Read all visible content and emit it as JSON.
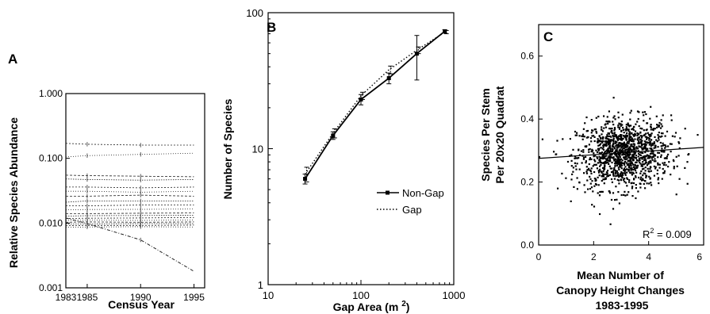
{
  "chart_data": [
    {
      "panel_label": "A",
      "type": "line",
      "xlabel": "Census Year",
      "ylabel": "Relative Species Abundance",
      "xlim": [
        1983,
        1996
      ],
      "ylim": [
        0.001,
        1.0
      ],
      "yscale": "log",
      "xticks": [
        "1983",
        "1985",
        "1990",
        "1995"
      ],
      "yticks": [
        "0.001",
        "0.010",
        "0.100",
        "1.000"
      ],
      "x": [
        1983,
        1985,
        1990,
        1995
      ],
      "series": [
        {
          "values": [
            0.17,
            0.165,
            0.16,
            0.16
          ]
        },
        {
          "values": [
            0.105,
            0.11,
            0.115,
            0.12
          ]
        },
        {
          "values": [
            0.055,
            0.054,
            0.053,
            0.052
          ]
        },
        {
          "values": [
            0.048,
            0.047,
            0.046,
            0.047
          ]
        },
        {
          "values": [
            0.036,
            0.036,
            0.035,
            0.036
          ]
        },
        {
          "values": [
            0.031,
            0.031,
            0.03,
            0.031
          ]
        },
        {
          "values": [
            0.026,
            0.026,
            0.027,
            0.026
          ]
        },
        {
          "values": [
            0.021,
            0.022,
            0.022,
            0.022
          ]
        },
        {
          "values": [
            0.0185,
            0.0185,
            0.019,
            0.019
          ]
        },
        {
          "values": [
            0.016,
            0.0162,
            0.0163,
            0.0165
          ]
        },
        {
          "values": [
            0.014,
            0.014,
            0.0142,
            0.0143
          ]
        },
        {
          "values": [
            0.0128,
            0.013,
            0.0131,
            0.0132
          ]
        },
        {
          "values": [
            0.0118,
            0.0119,
            0.012,
            0.0122
          ]
        },
        {
          "values": [
            0.011,
            0.0111,
            0.011,
            0.0112
          ]
        },
        {
          "values": [
            0.0103,
            0.0104,
            0.0103,
            0.0104
          ]
        },
        {
          "values": [
            0.0097,
            0.0097,
            0.0098,
            0.0098
          ]
        },
        {
          "values": [
            0.0091,
            0.0092,
            0.0092,
            0.0093
          ]
        },
        {
          "values": [
            0.0086,
            0.0087,
            0.0088,
            0.0087
          ]
        },
        {
          "values": [
            0.012,
            0.0098,
            0.0055,
            0.0018
          ]
        }
      ],
      "grid": false
    },
    {
      "panel_label": "B",
      "type": "line",
      "xlabel": "Gap Area (m²)",
      "ylabel": "Number of Species",
      "xscale": "log",
      "yscale": "log",
      "xlim": [
        10,
        1000
      ],
      "ylim": [
        1,
        100
      ],
      "xticks": [
        "10",
        "100",
        "1000"
      ],
      "yticks": [
        "1",
        "10",
        "100"
      ],
      "legend": {
        "placement": "bottom-right",
        "entries": [
          "Non-Gap",
          "Gap"
        ]
      },
      "series": [
        {
          "name": "Non-Gap",
          "style": "solid",
          "x": [
            25,
            50,
            100,
            200,
            400,
            800
          ],
          "values": [
            6.0,
            12.5,
            23.0,
            33.0,
            50.0,
            73.0
          ],
          "errors": [
            0.5,
            0.8,
            2.0,
            3.0,
            18.0,
            2.0
          ]
        },
        {
          "name": "Gap",
          "style": "dotted",
          "x": [
            25,
            50,
            100,
            200,
            400,
            800
          ],
          "values": [
            6.5,
            13.0,
            24.5,
            38.0,
            53.0,
            72.0
          ],
          "errors": [
            0.8,
            1.0,
            1.5,
            2.5,
            3.0,
            2.0
          ]
        }
      ]
    },
    {
      "panel_label": "C",
      "type": "scatter",
      "xlabel_lines": [
        "Mean Number of",
        "Canopy Height Changes",
        "1983-1995"
      ],
      "ylabel_lines": [
        "Species Per Stem",
        "Per 20x20 Quadrat"
      ],
      "xlim": [
        0,
        6
      ],
      "ylim": [
        0.0,
        0.7
      ],
      "xticks": [
        "0",
        "2",
        "4",
        "6"
      ],
      "yticks": [
        "0.0",
        "0.2",
        "0.4",
        "0.6"
      ],
      "n_points": 1250,
      "point_cloud": {
        "x_mean": 3.1,
        "x_sd": 0.85,
        "y_mean": 0.29,
        "y_sd": 0.055
      },
      "fit_line": {
        "x": [
          0,
          6
        ],
        "y": [
          0.275,
          0.31
        ]
      },
      "annotation": {
        "prefix": "R",
        "superscript": "2",
        "suffix": " = 0.009"
      }
    }
  ]
}
